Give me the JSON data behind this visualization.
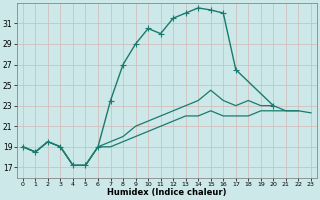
{
  "xlabel": "Humidex (Indice chaleur)",
  "bg_color": "#cce8e8",
  "grid_color": "#b0d4d4",
  "line_color": "#1a7a6e",
  "xlim": [
    -0.5,
    23.5
  ],
  "ylim": [
    16.0,
    33.0
  ],
  "yticks": [
    17,
    19,
    21,
    23,
    25,
    27,
    29,
    31
  ],
  "xticks": [
    0,
    1,
    2,
    3,
    4,
    5,
    6,
    7,
    8,
    9,
    10,
    11,
    12,
    13,
    14,
    15,
    16,
    17,
    18,
    19,
    20,
    21,
    22,
    23
  ],
  "series": [
    {
      "x": [
        0,
        1,
        2,
        3,
        4,
        5,
        6,
        7,
        8,
        9,
        10,
        11,
        12,
        13,
        14,
        15,
        16,
        17,
        20
      ],
      "y": [
        19.0,
        18.5,
        19.5,
        19.0,
        17.2,
        17.2,
        19.0,
        23.5,
        27.0,
        29.0,
        30.5,
        30.0,
        31.5,
        32.0,
        32.5,
        32.3,
        32.0,
        26.5,
        23.0
      ],
      "marker": "+",
      "ms": 4,
      "lw": 1.0
    },
    {
      "x": [
        0,
        1,
        2,
        3,
        4,
        5,
        6,
        7,
        8,
        9,
        10,
        11,
        12,
        13,
        14,
        15,
        16,
        17,
        18,
        19,
        20,
        21,
        22
      ],
      "y": [
        19.0,
        18.5,
        19.5,
        19.0,
        17.2,
        17.2,
        19.0,
        19.5,
        20.0,
        21.0,
        21.5,
        22.0,
        22.5,
        23.0,
        23.5,
        24.5,
        23.5,
        23.0,
        23.5,
        23.0,
        23.0,
        22.5,
        22.5
      ],
      "marker": null,
      "ms": 0,
      "lw": 0.9
    },
    {
      "x": [
        0,
        1,
        2,
        3,
        4,
        5,
        6,
        7,
        8,
        9,
        10,
        11,
        12,
        13,
        14,
        15,
        16,
        17,
        18,
        19,
        20,
        21,
        22,
        23
      ],
      "y": [
        19.0,
        18.5,
        19.5,
        19.0,
        17.2,
        17.2,
        19.0,
        19.0,
        19.5,
        20.0,
        20.5,
        21.0,
        21.5,
        22.0,
        22.0,
        22.5,
        22.0,
        22.0,
        22.0,
        22.5,
        22.5,
        22.5,
        22.5,
        22.3
      ],
      "marker": null,
      "ms": 0,
      "lw": 0.9
    }
  ]
}
